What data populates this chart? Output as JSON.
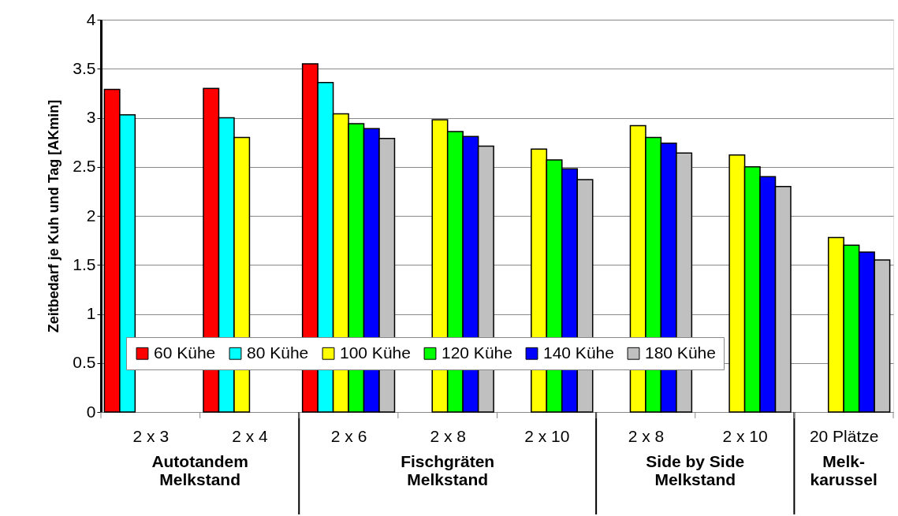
{
  "chart_data": {
    "type": "bar",
    "ylabel": "Zeitbedarf je Kuh und Tag [AKmin]",
    "categories": [
      "2 x 3",
      "2 x 4",
      "2 x 6",
      "2 x 8",
      "2 x 10",
      "2 x 8",
      "2 x 10",
      "20 Plätze"
    ],
    "series": [
      {
        "name": "60 Kühe",
        "color": "#ff0000",
        "values": [
          3.29,
          3.3,
          3.55,
          null,
          null,
          null,
          null,
          null
        ]
      },
      {
        "name": "80 Kühe",
        "color": "#00ffff",
        "values": [
          3.03,
          3.0,
          3.36,
          null,
          null,
          null,
          null,
          null
        ]
      },
      {
        "name": "100 Kühe",
        "color": "#ffff00",
        "values": [
          null,
          2.8,
          3.04,
          2.98,
          2.68,
          2.92,
          2.62,
          1.78
        ]
      },
      {
        "name": "120 Kühe",
        "color": "#00ff00",
        "values": [
          null,
          null,
          2.94,
          2.86,
          2.57,
          2.8,
          2.5,
          1.7
        ]
      },
      {
        "name": "140 Kühe",
        "color": "#0000ff",
        "values": [
          null,
          null,
          2.89,
          2.81,
          2.48,
          2.74,
          2.4,
          1.63
        ]
      },
      {
        "name": "180 Kühe",
        "color": "#c0c0c0",
        "values": [
          null,
          null,
          2.79,
          2.71,
          2.37,
          2.64,
          2.3,
          1.55
        ]
      }
    ],
    "ylim": [
      0,
      4
    ],
    "yticks": [
      0,
      0.5,
      1,
      1.5,
      2,
      2.5,
      3,
      3.5,
      4
    ],
    "grid": "y",
    "legend": "bottom",
    "annotations": [
      "Autotandem\nMelkstand",
      "Fischgräten\nMelkstand",
      "Side by Side\nMelkstand",
      "Melk-\nkarussel"
    ]
  }
}
